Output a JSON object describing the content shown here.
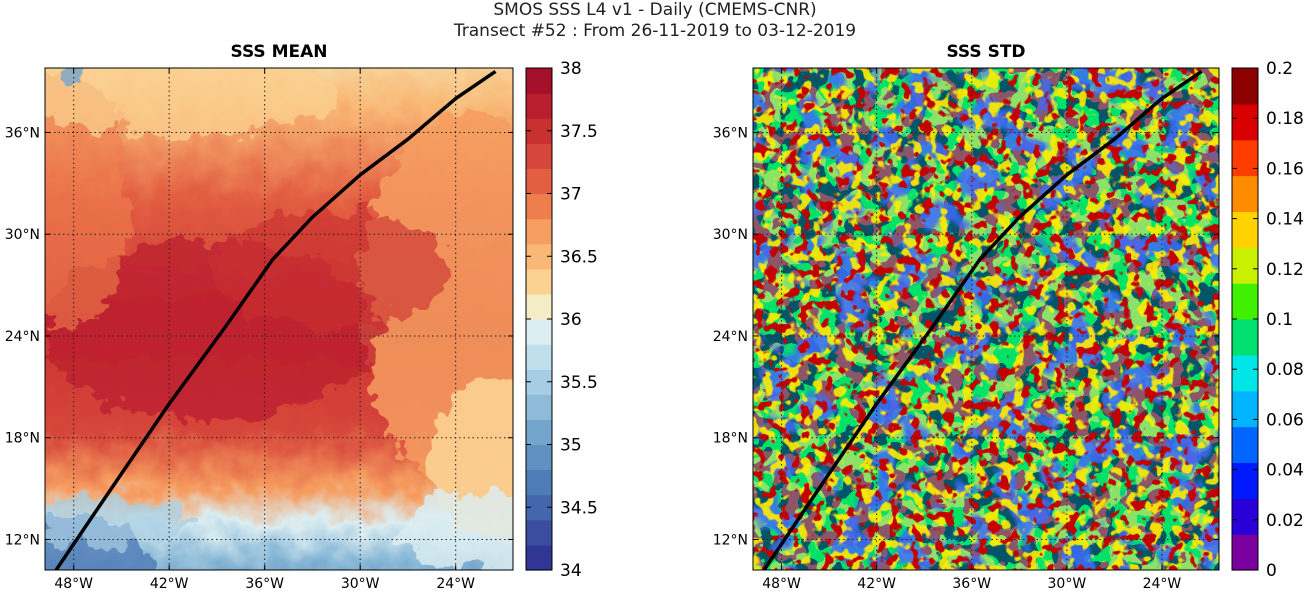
{
  "figure": {
    "title_line1": "SMOS SSS L4 v1 - Daily (CMEMS-CNR)",
    "title_line2": "Transect #52 : From 26-11-2019 to 03-12-2019"
  },
  "chart_data": [
    {
      "type": "heatmap",
      "title": "SSS MEAN",
      "x_ticks": [
        {
          "value": -48,
          "label": "48°W"
        },
        {
          "value": -42,
          "label": "42°W"
        },
        {
          "value": -36,
          "label": "36°W"
        },
        {
          "value": -30,
          "label": "30°W"
        },
        {
          "value": -24,
          "label": "24°W"
        }
      ],
      "y_ticks": [
        {
          "value": 12,
          "label": "12°N"
        },
        {
          "value": 18,
          "label": "18°N"
        },
        {
          "value": 24,
          "label": "24°N"
        },
        {
          "value": 30,
          "label": "30°N"
        },
        {
          "value": 36,
          "label": "36°N"
        }
      ],
      "xlim": [
        -49.8,
        -20.4
      ],
      "ylim": [
        10.2,
        39.8
      ],
      "grid": true,
      "colorbar": {
        "min": 34,
        "max": 38,
        "ticks": [
          "34",
          "34.5",
          "35",
          "35.5",
          "36",
          "36.5",
          "37",
          "37.5",
          "38"
        ],
        "colors": [
          "#313695",
          "#3a4d9e",
          "#4466ad",
          "#4f7bb7",
          "#5f90c0",
          "#74a6cd",
          "#8dbbd8",
          "#a6cde3",
          "#c0dfec",
          "#dceef2",
          "#f4ecc4",
          "#fbd292",
          "#f9b875",
          "#f69d60",
          "#ef7e4e",
          "#e35f42",
          "#d6463a",
          "#c93131",
          "#b91d2e",
          "#a50f2a"
        ]
      }
    },
    {
      "type": "heatmap",
      "title": "SSS STD",
      "x_ticks": [
        {
          "value": -48,
          "label": "48°W"
        },
        {
          "value": -42,
          "label": "42°W"
        },
        {
          "value": -36,
          "label": "36°W"
        },
        {
          "value": -30,
          "label": "30°W"
        },
        {
          "value": -24,
          "label": "24°W"
        }
      ],
      "y_ticks": [
        {
          "value": 12,
          "label": "12°N"
        },
        {
          "value": 18,
          "label": "18°N"
        },
        {
          "value": 24,
          "label": "24°N"
        },
        {
          "value": 30,
          "label": "30°N"
        },
        {
          "value": 36,
          "label": "36°N"
        }
      ],
      "xlim": [
        -49.8,
        -20.4
      ],
      "ylim": [
        10.2,
        39.8
      ],
      "grid": true,
      "colorbar": {
        "min": 0,
        "max": 0.2,
        "ticks": [
          "0",
          "0.02",
          "0.04",
          "0.06",
          "0.08",
          "0.1",
          "0.12",
          "0.14",
          "0.16",
          "0.18",
          "0.2"
        ],
        "colors": [
          "#7a00a0",
          "#2a00d8",
          "#0019ff",
          "#0066ff",
          "#00b4ff",
          "#00e6e6",
          "#00e070",
          "#40f000",
          "#c8f000",
          "#ffd200",
          "#ff8c00",
          "#ff3c00",
          "#d80000",
          "#8c0000"
        ]
      }
    }
  ],
  "transect": {
    "lon": [
      -49.1,
      -46.0,
      -42.0,
      -38.5,
      -35.5,
      -33.0,
      -30.0,
      -27.0,
      -24.0,
      -21.5
    ],
    "lat": [
      10.2,
      14.5,
      20.0,
      24.5,
      28.5,
      31.0,
      33.5,
      35.6,
      38.0,
      39.6
    ]
  }
}
